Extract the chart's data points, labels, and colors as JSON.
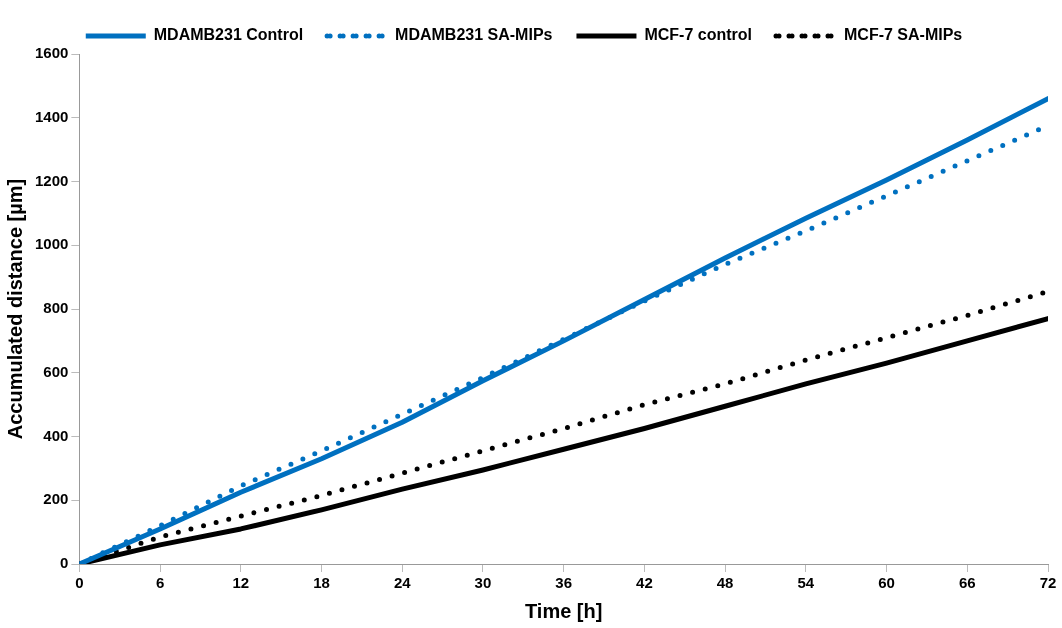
{
  "chart_data": {
    "type": "line",
    "xlabel": "Time [h]",
    "ylabel": "Accumulated distance [µm]",
    "x": [
      0,
      6,
      12,
      18,
      24,
      30,
      36,
      42,
      48,
      54,
      60,
      66,
      72
    ],
    "series": [
      {
        "name": "MDAMB231 Control",
        "color": "#0070c0",
        "line_style": "solid",
        "values": [
          0,
          110,
          225,
          330,
          445,
          575,
          700,
          830,
          960,
          1085,
          1205,
          1330,
          1460
        ]
      },
      {
        "name": "MDAMB231 SA-MIPs",
        "color": "#0070c0",
        "line_style": "dotted",
        "values": [
          0,
          120,
          245,
          355,
          470,
          585,
          705,
          825,
          940,
          1045,
          1155,
          1265,
          1375
        ]
      },
      {
        "name": "MCF-7 control",
        "color": "#000000",
        "line_style": "solid",
        "values": [
          0,
          60,
          110,
          170,
          235,
          295,
          360,
          425,
          495,
          565,
          630,
          700,
          770
        ]
      },
      {
        "name": "MCF-7 SA-MIPs",
        "color": "#000000",
        "line_style": "dotted",
        "values": [
          0,
          85,
          150,
          215,
          285,
          355,
          425,
          500,
          565,
          640,
          710,
          780,
          855
        ]
      }
    ],
    "xlim": [
      0,
      72
    ],
    "xticks": [
      0,
      6,
      12,
      18,
      24,
      30,
      36,
      42,
      48,
      54,
      60,
      66,
      72
    ],
    "ylim": [
      0,
      1600
    ],
    "yticks": [
      0,
      200,
      400,
      600,
      800,
      1000,
      1200,
      1400,
      1600
    ],
    "grid": false,
    "legend": "top",
    "marker": "none"
  }
}
